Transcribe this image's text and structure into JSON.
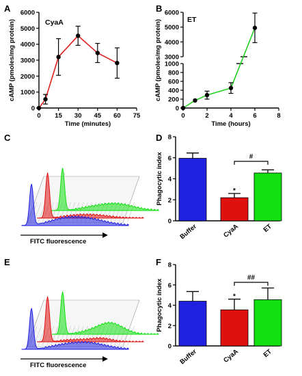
{
  "panels": {
    "A": "A",
    "B": "B",
    "C": "C",
    "D": "D",
    "E": "E",
    "F": "F"
  },
  "flow_axis_label": "FITC fluorescence",
  "colors": {
    "buffer": "#2020e0",
    "cyaa": "#e01010",
    "et": "#10e010",
    "line_a": "#e02020",
    "line_b": "#20d020"
  },
  "chart_data": [
    {
      "id": "A",
      "type": "line",
      "title": "CyaA",
      "xlabel": "Time (minutes)",
      "ylabel": "cAMP (pmoles/mg protein)",
      "xlim": [
        0,
        75
      ],
      "ylim": [
        0,
        6000
      ],
      "xticks": [
        0,
        15,
        30,
        45,
        60,
        75
      ],
      "yticks": [
        0,
        1000,
        2000,
        3000,
        4000,
        5000,
        6000
      ],
      "x": [
        0,
        5,
        15,
        30,
        45,
        60
      ],
      "y": [
        0,
        550,
        3200,
        4530,
        3450,
        2820
      ],
      "err": [
        0,
        300,
        1150,
        600,
        600,
        950
      ]
    },
    {
      "id": "B",
      "type": "line",
      "title": "ET",
      "xlabel": "Time (hours)",
      "ylabel": "cAMP (pmoles/mg protein)",
      "xlim": [
        0,
        8
      ],
      "xticks": [
        0,
        2,
        4,
        6,
        8
      ],
      "yticks_lower": [
        0,
        200,
        400,
        600,
        800,
        1000
      ],
      "yticks_upper": [
        3000,
        4000,
        5000,
        6000
      ],
      "x": [
        0,
        1,
        2,
        4,
        6
      ],
      "y": [
        0,
        170,
        290,
        450,
        4950
      ],
      "err": [
        0,
        0,
        90,
        120,
        1000
      ]
    },
    {
      "id": "D",
      "type": "bar",
      "ylabel": "Phagocytic index",
      "categories": [
        "Buffer",
        "CyaA",
        "ET"
      ],
      "values": [
        5.95,
        2.2,
        4.55
      ],
      "err": [
        0.5,
        0.4,
        0.3
      ],
      "ylim": [
        0,
        8
      ],
      "yticks": [
        0,
        2,
        4,
        6,
        8
      ],
      "annotations": [
        {
          "text": "*",
          "over": "CyaA"
        },
        {
          "text": "#",
          "between": [
            "CyaA",
            "ET"
          ]
        }
      ]
    },
    {
      "id": "F",
      "type": "bar",
      "ylabel": "Phagocytic index",
      "categories": [
        "Buffer",
        "CyaA",
        "ET"
      ],
      "values": [
        4.4,
        3.55,
        4.55
      ],
      "err": [
        0.95,
        1.05,
        1.15
      ],
      "ylim": [
        0,
        8
      ],
      "yticks": [
        0,
        2,
        4,
        6,
        8
      ],
      "annotations": [
        {
          "text": "*",
          "over": "CyaA"
        },
        {
          "text": "##",
          "between": [
            "CyaA",
            "ET"
          ]
        }
      ]
    }
  ]
}
